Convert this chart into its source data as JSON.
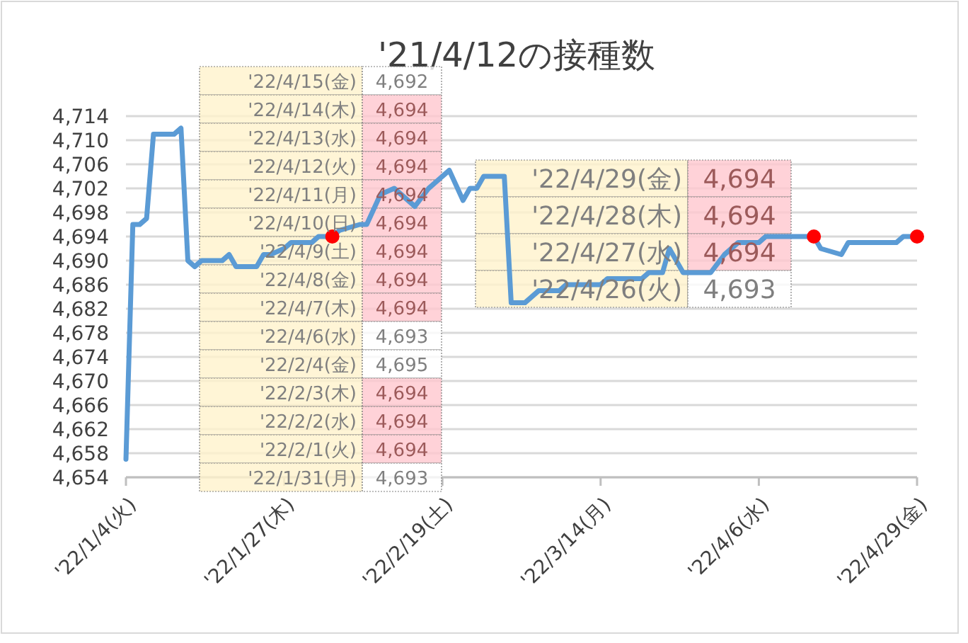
{
  "chart_data": {
    "type": "line",
    "title": "'21/4/12の接種数",
    "xlim": [
      "2022-01-04",
      "2022-04-29"
    ],
    "xticks": [
      {
        "value": "2022-01-04",
        "label": "'22/1/4(火)"
      },
      {
        "value": "2022-01-27",
        "label": "'22/1/27(木)"
      },
      {
        "value": "2022-02-19",
        "label": "'22/2/19(土)"
      },
      {
        "value": "2022-03-14",
        "label": "'22/3/14(月)"
      },
      {
        "value": "2022-04-06",
        "label": "'22/4/6(水)"
      },
      {
        "value": "2022-04-29",
        "label": "'22/4/29(金)"
      }
    ],
    "ylim": [
      4654,
      4714
    ],
    "yticks": [
      {
        "value": 4654,
        "label": "4,654"
      },
      {
        "value": 4658,
        "label": "4,658"
      },
      {
        "value": 4662,
        "label": "4,662"
      },
      {
        "value": 4666,
        "label": "4,666"
      },
      {
        "value": 4670,
        "label": "4,670"
      },
      {
        "value": 4674,
        "label": "4,674"
      },
      {
        "value": 4678,
        "label": "4,678"
      },
      {
        "value": 4682,
        "label": "4,682"
      },
      {
        "value": 4686,
        "label": "4,686"
      },
      {
        "value": 4690,
        "label": "4,690"
      },
      {
        "value": 4694,
        "label": "4,694"
      },
      {
        "value": 4698,
        "label": "4,698"
      },
      {
        "value": 4702,
        "label": "4,702"
      },
      {
        "value": 4706,
        "label": "4,706"
      },
      {
        "value": 4710,
        "label": "4,710"
      },
      {
        "value": 4714,
        "label": "4,714"
      }
    ],
    "grid": "y",
    "series": [
      {
        "color": "#5b9bd5",
        "x": [
          "2022-01-04",
          "2022-01-05",
          "2022-01-06",
          "2022-01-07",
          "2022-01-08",
          "2022-01-11",
          "2022-01-12",
          "2022-01-13",
          "2022-01-14",
          "2022-01-15",
          "2022-01-18",
          "2022-01-19",
          "2022-01-20",
          "2022-01-23",
          "2022-01-24",
          "2022-01-25",
          "2022-01-27",
          "2022-01-28",
          "2022-01-31",
          "2022-02-01",
          "2022-02-02",
          "2022-02-03",
          "2022-02-04",
          "2022-02-07",
          "2022-02-08",
          "2022-02-10",
          "2022-02-12",
          "2022-02-13",
          "2022-02-15",
          "2022-02-17",
          "2022-02-20",
          "2022-02-22",
          "2022-02-23",
          "2022-02-24",
          "2022-02-25",
          "2022-02-28",
          "2022-03-01",
          "2022-03-03",
          "2022-03-05",
          "2022-03-08",
          "2022-03-09",
          "2022-03-14",
          "2022-03-15",
          "2022-03-20",
          "2022-03-21",
          "2022-03-23",
          "2022-03-24",
          "2022-03-26",
          "2022-03-30",
          "2022-04-01",
          "2022-04-03",
          "2022-04-05",
          "2022-04-06",
          "2022-04-07",
          "2022-04-14",
          "2022-04-15",
          "2022-04-18",
          "2022-04-19",
          "2022-04-25",
          "2022-04-26",
          "2022-04-27",
          "2022-04-29"
        ],
        "values": [
          4657,
          4696,
          4696,
          4697,
          4711,
          4711,
          4712,
          4690,
          4689,
          4690,
          4690,
          4691,
          4689,
          4689,
          4691,
          4691,
          4692,
          4693,
          4693,
          4694,
          4694,
          4694,
          4695,
          4696,
          4696,
          4701,
          4702,
          4701,
          4699,
          4702,
          4705,
          4700,
          4702,
          4702,
          4704,
          4704,
          4683,
          4683,
          4685,
          4685,
          4686,
          4686,
          4687,
          4687,
          4688,
          4688,
          4692,
          4688,
          4688,
          4691,
          4693,
          4693,
          4693,
          4694,
          4694,
          4692,
          4691,
          4693,
          4693,
          4693,
          4694,
          4694
        ]
      },
      {
        "type": "scatter",
        "color": "#ff0000",
        "x": [
          "2022-02-03",
          "2022-04-14",
          "2022-04-29"
        ],
        "values": [
          4694,
          4694,
          4694
        ]
      }
    ],
    "annotations": [
      "'22/4/15(金)",
      "4,692",
      "'22/4/14(木)",
      "4,694",
      "'22/4/13(水)",
      "4,694",
      "'22/4/12(火)",
      "4,694",
      "'22/4/11(月)",
      "4,694",
      "'22/4/10(日)",
      "4,694",
      "'22/4/9(土)",
      "4,694",
      "'22/4/8(金)",
      "4,694",
      "'22/4/7(木)",
      "4,694",
      "'22/4/6(水)",
      "4,693",
      "'22/2/4(金)",
      "4,695",
      "'22/2/3(木)",
      "4,694",
      "'22/2/2(水)",
      "4,694",
      "'22/2/1(火)",
      "4,694",
      "'22/1/31(月)",
      "4,693",
      "'22/4/29(金)",
      "4,694",
      "'22/4/28(木)",
      "4,694",
      "'22/4/27(水)",
      "4,694",
      "'22/4/26(火)",
      "4,693"
    ]
  }
}
